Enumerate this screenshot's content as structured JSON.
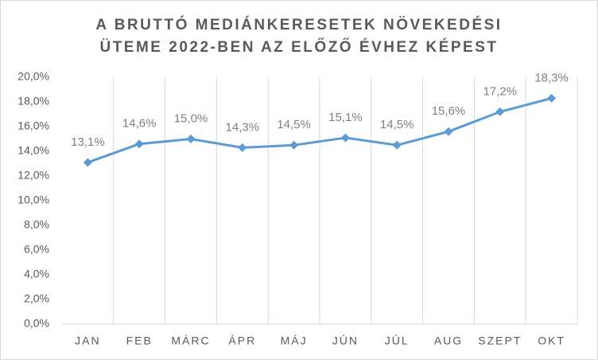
{
  "chart_data": {
    "type": "line",
    "title": [
      "A BRUTTÓ MEDIÁNKERESETEK NÖVEKEDÉSI",
      "ÜTEME 2022-BEN AZ ELŐZŐ ÉVHEZ KÉPEST"
    ],
    "categories": [
      "JAN",
      "FEB",
      "MÁRC",
      "ÁPR",
      "MÁJ",
      "JÚN",
      "JÚL",
      "AUG",
      "SZEPT",
      "OKT"
    ],
    "values": [
      13.1,
      14.6,
      15.0,
      14.3,
      14.5,
      15.1,
      14.5,
      15.6,
      17.2,
      18.3
    ],
    "value_labels": [
      "13,1%",
      "14,6%",
      "15,0%",
      "14,3%",
      "14,5%",
      "15,1%",
      "14,5%",
      "15,6%",
      "17,2%",
      "18,3%"
    ],
    "color": "#5b9bd5",
    "ylim": [
      0,
      20
    ],
    "yticks": [
      {
        "value": 0,
        "label": "0,0%"
      },
      {
        "value": 2,
        "label": "2,0%"
      },
      {
        "value": 4,
        "label": "4,0%"
      },
      {
        "value": 6,
        "label": "6,0%"
      },
      {
        "value": 8,
        "label": "8,0%"
      },
      {
        "value": 10,
        "label": "10,0%"
      },
      {
        "value": 12,
        "label": "12,0%"
      },
      {
        "value": 14,
        "label": "14,0%"
      },
      {
        "value": 16,
        "label": "16,0%"
      },
      {
        "value": 18,
        "label": "18,0%"
      },
      {
        "value": 20,
        "label": "20,0%"
      }
    ]
  }
}
